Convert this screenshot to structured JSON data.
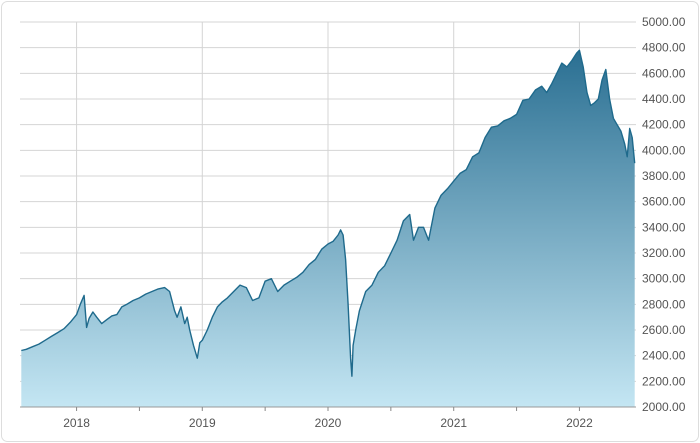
{
  "chart_data": {
    "type": "area",
    "title": "",
    "xlabel": "",
    "ylabel": "",
    "xlim": [
      2017.55,
      2022.45
    ],
    "ylim": [
      2000,
      5000
    ],
    "y_ticks": [
      2000,
      2200,
      2400,
      2600,
      2800,
      3000,
      3200,
      3400,
      3600,
      3800,
      4000,
      4200,
      4400,
      4600,
      4800,
      5000
    ],
    "y_tick_labels": [
      "2000.00",
      "2200.00",
      "2400.00",
      "2600.00",
      "2800.00",
      "3000.00",
      "3200.00",
      "3400.00",
      "3600.00",
      "3800.00",
      "4000.00",
      "4200.00",
      "4400.00",
      "4600.00",
      "4800.00",
      "5000.00"
    ],
    "x_ticks": [
      2018,
      2019,
      2020,
      2021,
      2022
    ],
    "x_tick_labels": [
      "2018",
      "2019",
      "2020",
      "2021",
      "2022"
    ],
    "y_axis_position": "right",
    "grid": true,
    "legend": "none",
    "colors": {
      "line": "#1f6a8c",
      "fill_top": "#2a6f92",
      "fill_bottom": "#c4e6f3",
      "grid": "#d4d4d4",
      "frame": "#dddddd"
    },
    "series": [
      {
        "x": [
          2017.56,
          2017.6,
          2017.65,
          2017.7,
          2017.75,
          2017.8,
          2017.85,
          2017.9,
          2017.95,
          2018.0,
          2018.03,
          2018.06,
          2018.08,
          2018.1,
          2018.13,
          2018.16,
          2018.2,
          2018.24,
          2018.28,
          2018.32,
          2018.36,
          2018.4,
          2018.45,
          2018.5,
          2018.55,
          2018.6,
          2018.65,
          2018.7,
          2018.74,
          2018.78,
          2018.8,
          2018.83,
          2018.86,
          2018.88,
          2018.9,
          2018.93,
          2018.96,
          2018.98,
          2019.0,
          2019.04,
          2019.08,
          2019.12,
          2019.16,
          2019.2,
          2019.25,
          2019.3,
          2019.35,
          2019.4,
          2019.45,
          2019.5,
          2019.55,
          2019.6,
          2019.65,
          2019.7,
          2019.75,
          2019.8,
          2019.85,
          2019.9,
          2019.95,
          2020.0,
          2020.04,
          2020.08,
          2020.1,
          2020.12,
          2020.14,
          2020.16,
          2020.18,
          2020.19,
          2020.2,
          2020.22,
          2020.25,
          2020.3,
          2020.35,
          2020.4,
          2020.45,
          2020.5,
          2020.55,
          2020.6,
          2020.65,
          2020.68,
          2020.72,
          2020.76,
          2020.8,
          2020.85,
          2020.9,
          2020.95,
          2021.0,
          2021.05,
          2021.1,
          2021.15,
          2021.2,
          2021.25,
          2021.3,
          2021.35,
          2021.4,
          2021.45,
          2021.5,
          2021.55,
          2021.6,
          2021.65,
          2021.7,
          2021.74,
          2021.78,
          2021.82,
          2021.86,
          2021.9,
          2021.94,
          2021.98,
          2022.0,
          2022.03,
          2022.06,
          2022.09,
          2022.12,
          2022.15,
          2022.18,
          2022.21,
          2022.24,
          2022.27,
          2022.3,
          2022.33,
          2022.36,
          2022.38,
          2022.4,
          2022.42,
          2022.44
        ],
        "y": [
          2440,
          2450,
          2470,
          2490,
          2520,
          2550,
          2580,
          2610,
          2660,
          2720,
          2800,
          2870,
          2620,
          2690,
          2740,
          2700,
          2650,
          2680,
          2710,
          2720,
          2780,
          2800,
          2830,
          2850,
          2880,
          2900,
          2920,
          2930,
          2900,
          2750,
          2700,
          2780,
          2650,
          2700,
          2600,
          2480,
          2380,
          2500,
          2520,
          2600,
          2700,
          2780,
          2820,
          2850,
          2900,
          2950,
          2930,
          2830,
          2850,
          2980,
          3000,
          2900,
          2950,
          2980,
          3010,
          3050,
          3110,
          3150,
          3230,
          3270,
          3290,
          3340,
          3380,
          3340,
          3150,
          2800,
          2380,
          2240,
          2480,
          2600,
          2750,
          2900,
          2950,
          3050,
          3100,
          3200,
          3300,
          3450,
          3500,
          3300,
          3400,
          3400,
          3300,
          3550,
          3650,
          3700,
          3760,
          3820,
          3850,
          3950,
          3980,
          4100,
          4180,
          4190,
          4230,
          4250,
          4280,
          4390,
          4400,
          4470,
          4500,
          4450,
          4520,
          4600,
          4680,
          4650,
          4700,
          4760,
          4780,
          4650,
          4450,
          4350,
          4370,
          4400,
          4550,
          4630,
          4400,
          4250,
          4200,
          4150,
          4050,
          3950,
          4170,
          4100,
          3900
        ]
      }
    ]
  }
}
